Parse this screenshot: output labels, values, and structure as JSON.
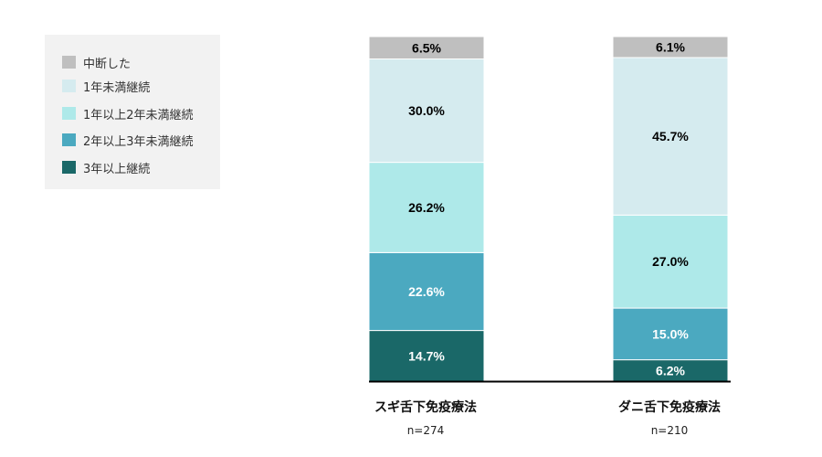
{
  "legend": {
    "items": [
      {
        "label": "中断した",
        "color": "#bfbfbf"
      },
      {
        "label": "1年未満継続",
        "color": "#d5ebef"
      },
      {
        "label": "1年以上2年未満継続",
        "color": "#aee9e9"
      },
      {
        "label": "2年以上3年未満継続",
        "color": "#4ba9c0"
      },
      {
        "label": "3年以上継続",
        "color": "#1a6868"
      }
    ]
  },
  "chart_data": {
    "type": "bar",
    "stacked": true,
    "unit": "%",
    "categories": [
      "スギ舌下免疫療法",
      "ダニ舌下免疫療法"
    ],
    "sample_sizes": [
      "n=274",
      "n=210"
    ],
    "series": [
      {
        "name": "3年以上継続",
        "color": "#1a6868",
        "label_color": "#ffffff",
        "values": [
          14.7,
          6.2
        ],
        "labels": [
          "14.7%",
          "6.2%"
        ]
      },
      {
        "name": "2年以上3年未満継続",
        "color": "#4ba9c0",
        "label_color": "#ffffff",
        "values": [
          22.6,
          15.0
        ],
        "labels": [
          "22.6%",
          "15.0%"
        ]
      },
      {
        "name": "1年以上2年未満継続",
        "color": "#aee9e9",
        "label_color": "#000000",
        "values": [
          26.2,
          27.0
        ],
        "labels": [
          "26.2%",
          "27.0%"
        ]
      },
      {
        "name": "1年未満継続",
        "color": "#d5ebef",
        "label_color": "#000000",
        "values": [
          30.0,
          45.7
        ],
        "labels": [
          "30.0%",
          "45.7%"
        ]
      },
      {
        "name": "中断した",
        "color": "#bfbfbf",
        "label_color": "#000000",
        "values": [
          6.5,
          6.1
        ],
        "labels": [
          "6.5%",
          "6.1%"
        ]
      }
    ],
    "ylim": [
      0,
      100
    ],
    "legend_position": "top-left",
    "grid": false
  }
}
